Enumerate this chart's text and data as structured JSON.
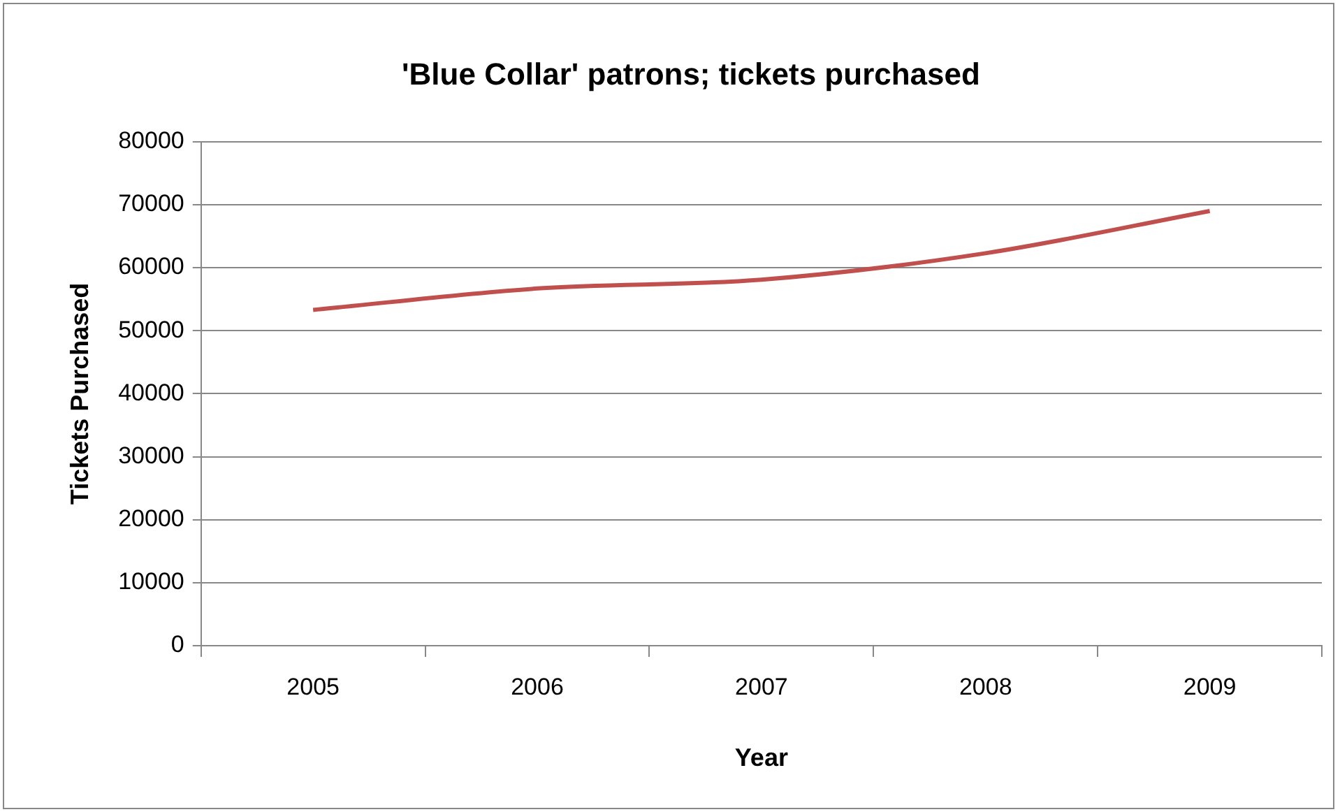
{
  "chart_data": {
    "type": "line",
    "title": "'Blue Collar' patrons; tickets purchased",
    "xlabel": "Year",
    "ylabel": "Tickets Purchased",
    "categories": [
      "2005",
      "2006",
      "2007",
      "2008",
      "2009"
    ],
    "series": [
      {
        "color": "#c0504d",
        "values": [
          53300,
          56700,
          58100,
          62300,
          69000
        ]
      }
    ],
    "ylim": [
      0,
      80000
    ],
    "yticks": [
      0,
      10000,
      20000,
      30000,
      40000,
      50000,
      60000,
      70000,
      80000
    ],
    "grid": "y",
    "legend": false,
    "marker": "none",
    "line_style": "solid"
  }
}
